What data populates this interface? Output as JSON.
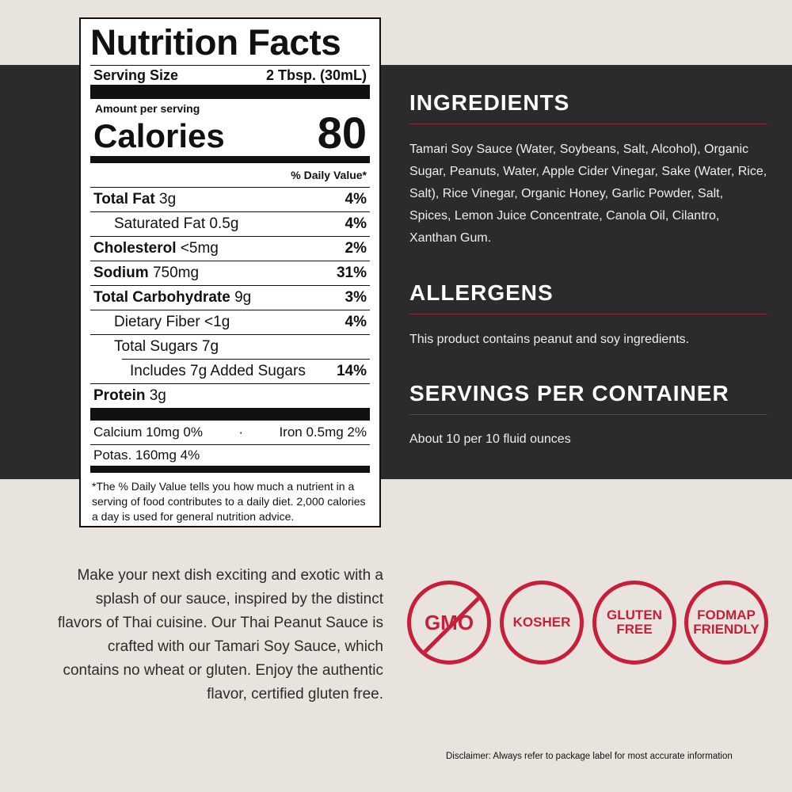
{
  "nutrition": {
    "title": "Nutrition Facts",
    "serving_label": "Serving Size",
    "serving_value": "2 Tbsp. (30mL)",
    "amount_per_serving": "Amount per serving",
    "calories_label": "Calories",
    "calories_value": "80",
    "dv_header": "% Daily Value*",
    "rows": [
      {
        "name": "Total Fat",
        "amount": "3g",
        "dv": "4%"
      },
      {
        "name": "Saturated Fat 0.5g",
        "amount": "",
        "dv": "4%"
      },
      {
        "name": "Cholesterol",
        "amount": "<5mg",
        "dv": "2%"
      },
      {
        "name": "Sodium",
        "amount": "750mg",
        "dv": "31%"
      },
      {
        "name": "Total Carbohydrate",
        "amount": "9g",
        "dv": "3%"
      },
      {
        "name": "Dietary Fiber <1g",
        "amount": "",
        "dv": "4%"
      },
      {
        "name": "Total Sugars 7g",
        "amount": "",
        "dv": ""
      },
      {
        "name": "Includes 7g Added Sugars",
        "amount": "",
        "dv": "14%"
      },
      {
        "name": "Protein",
        "amount": "3g",
        "dv": ""
      }
    ],
    "calcium": "Calcium 10mg 0%",
    "separator": "·",
    "iron": "Iron 0.5mg 2%",
    "potassium": "Potas. 160mg 4%",
    "footnote": "*The % Daily Value tells you how much a nutrient in a serving of food contributes to a daily diet. 2,000 calories a day is used for general nutrition advice."
  },
  "ingredients": {
    "heading": "INGREDIENTS",
    "text": "Tamari Soy Sauce (Water, Soybeans, Salt, Alcohol), Organic Sugar, Peanuts, Water, Apple Cider Vinegar, Sake (Water, Rice, Salt), Rice Vinegar, Organic Honey, Garlic Powder, Salt, Spices, Lemon Juice Concentrate, Canola Oil, Cilantro, Xanthan Gum."
  },
  "allergens": {
    "heading": "ALLERGENS",
    "text": "This product contains peanut and soy ingredients."
  },
  "servings": {
    "heading": "SERVINGS PER CONTAINER",
    "text": "About 10 per 10 fluid ounces"
  },
  "description": "Make your next dish exciting and exotic with a splash of our sauce, inspired by the distinct flavors of Thai cuisine. Our Thai Peanut Sauce is crafted with our Tamari Soy Sauce, which contains no wheat or gluten. Enjoy the authentic flavor, certified gluten free.",
  "badges": [
    {
      "line1": "GMO",
      "line2": "",
      "icon": "no-gmo-slash"
    },
    {
      "line1": "KOSHER",
      "line2": ""
    },
    {
      "line1": "GLUTEN",
      "line2": "FREE"
    },
    {
      "line1": "FODMAP",
      "line2": "FRIENDLY"
    }
  ],
  "badge_color": "#c71f3a",
  "disclaimer": "Disclaimer: Always refer to package label for most accurate information"
}
